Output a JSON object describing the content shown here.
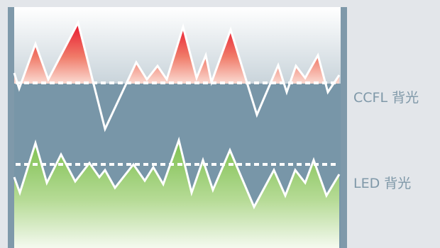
{
  "labels": {
    "ccfl": "CCFL 背光",
    "led": "LED 背光"
  },
  "colors": {
    "background": "#e3e6ea",
    "panel": "#7896a8",
    "frame": "#7f99aa",
    "ccfl_peak": "#e8102a",
    "led_fill": "#8cc85c",
    "line": "#ffffff",
    "label_text": "#7f98a8"
  }
}
